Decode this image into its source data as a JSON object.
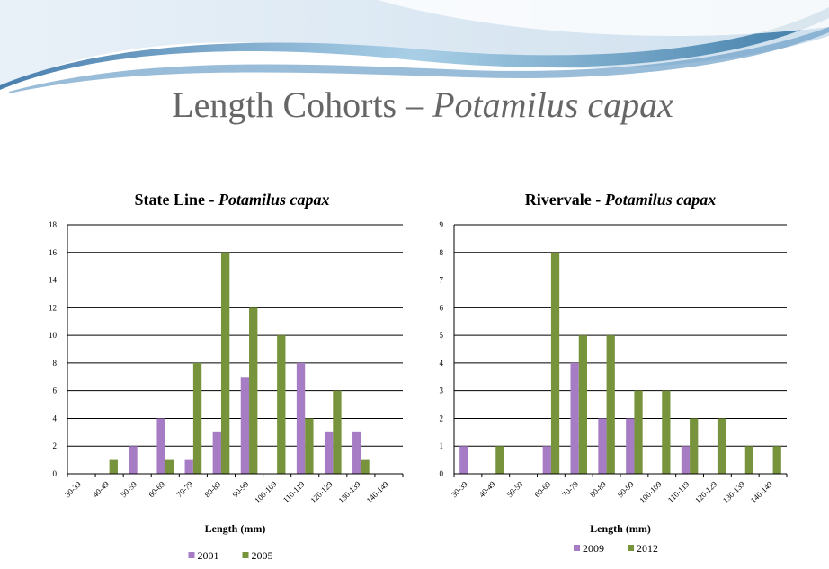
{
  "title": [
    "Length Cohorts – ",
    "Potamilus capax"
  ],
  "chart_data": [
    {
      "type": "bar",
      "title": [
        "State Line - ",
        "Potamilus capax"
      ],
      "categories": [
        "30-39",
        "40-49",
        "50-59",
        "60-69",
        "70-79",
        "80-89",
        "90-99",
        "100-109",
        "110-119",
        "120-129",
        "130-139",
        "140-149"
      ],
      "series": [
        {
          "name": "2001",
          "color": "#a67cc5",
          "values": [
            0,
            0,
            2,
            4,
            1,
            3,
            7,
            0,
            8,
            3,
            3,
            0
          ]
        },
        {
          "name": "2005",
          "color": "#77933c",
          "values": [
            0,
            1,
            0,
            1,
            8,
            16,
            12,
            10,
            4,
            6,
            1,
            0
          ]
        }
      ],
      "x_label": "Length (mm)",
      "ylim": [
        0,
        18
      ],
      "yticks": [
        0,
        2,
        4,
        6,
        8,
        10,
        12,
        14,
        16,
        18
      ],
      "grid": true,
      "legend": "bottom"
    },
    {
      "type": "bar",
      "title": [
        "Rivervale - ",
        "Potamilus capax"
      ],
      "categories": [
        "30-39",
        "40-49",
        "50-59",
        "60-69",
        "70-79",
        "80-89",
        "90-99",
        "100-109",
        "110-119",
        "120-129",
        "130-139",
        "140-149"
      ],
      "series": [
        {
          "name": "2009",
          "color": "#a67cc5",
          "values": [
            1,
            0,
            0,
            1,
            4,
            2,
            2,
            0,
            1,
            0,
            0,
            0
          ]
        },
        {
          "name": "2012",
          "color": "#77933c",
          "values": [
            0,
            1,
            0,
            8,
            5,
            5,
            3,
            3,
            2,
            2,
            1,
            1
          ]
        }
      ],
      "x_label": "Length (mm)",
      "ylim": [
        0,
        9
      ],
      "yticks": [
        0,
        1,
        2,
        3,
        4,
        5,
        6,
        7,
        8,
        9
      ],
      "grid": true,
      "legend": "bottom"
    }
  ]
}
